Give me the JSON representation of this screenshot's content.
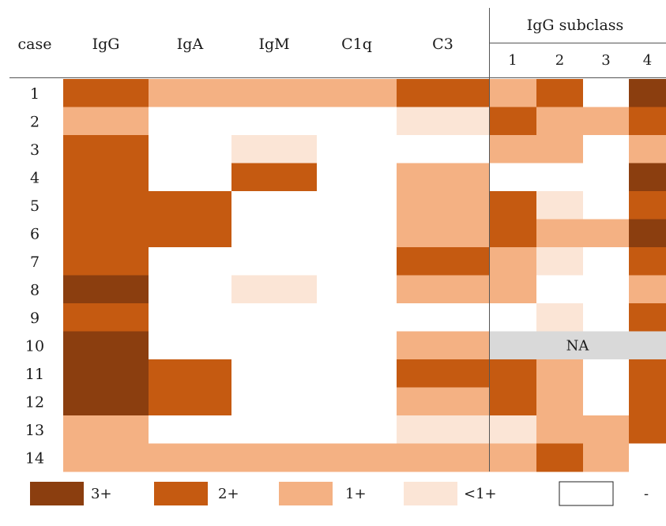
{
  "chart_data": {
    "type": "heatmap",
    "row_header": "case",
    "group_header": "IgG subclass",
    "columns": [
      "IgG",
      "IgA",
      "IgM",
      "C1q",
      "C3",
      "1",
      "2",
      "3",
      "4"
    ],
    "rows": [
      "1",
      "2",
      "3",
      "4",
      "5",
      "6",
      "7",
      "8",
      "9",
      "10",
      "11",
      "12",
      "13",
      "14"
    ],
    "values": [
      [
        "2+",
        "1+",
        "1+",
        "1+",
        "2+",
        "1+",
        "2+",
        "-",
        "3+"
      ],
      [
        "1+",
        "-",
        "-",
        "-",
        "<1+",
        "2+",
        "1+",
        "1+",
        "2+"
      ],
      [
        "2+",
        "-",
        "<1+",
        "-",
        "-",
        "1+",
        "1+",
        "-",
        "1+"
      ],
      [
        "2+",
        "-",
        "2+",
        "-",
        "1+",
        "-",
        "-",
        "-",
        "3+"
      ],
      [
        "2+",
        "2+",
        "-",
        "-",
        "1+",
        "2+",
        "<1+",
        "-",
        "2+"
      ],
      [
        "2+",
        "2+",
        "-",
        "-",
        "1+",
        "2+",
        "1+",
        "1+",
        "3+"
      ],
      [
        "2+",
        "-",
        "-",
        "-",
        "2+",
        "1+",
        "<1+",
        "-",
        "2+"
      ],
      [
        "3+",
        "-",
        "<1+",
        "-",
        "1+",
        "1+",
        "-",
        "-",
        "1+"
      ],
      [
        "2+",
        "-",
        "-",
        "-",
        "-",
        "-",
        "<1+",
        "-",
        "2+"
      ],
      [
        "3+",
        "-",
        "-",
        "-",
        "1+",
        "NA",
        "NA",
        "NA",
        "NA"
      ],
      [
        "3+",
        "2+",
        "-",
        "-",
        "2+",
        "2+",
        "1+",
        "-",
        "2+"
      ],
      [
        "3+",
        "2+",
        "-",
        "-",
        "1+",
        "2+",
        "1+",
        "-",
        "2+"
      ],
      [
        "1+",
        "-",
        "-",
        "-",
        "<1+",
        "<1+",
        "1+",
        "1+",
        "2+"
      ],
      [
        "1+",
        "1+",
        "1+",
        "1+",
        "1+",
        "1+",
        "2+",
        "1+",
        "-"
      ]
    ],
    "na_label": "NA",
    "legend": [
      {
        "level": "3+",
        "label": "3+"
      },
      {
        "level": "2+",
        "label": "2+"
      },
      {
        "level": "1+",
        "label": "1+"
      },
      {
        "level": "<1+",
        "label": "<1+"
      },
      {
        "level": "-",
        "label": "-"
      }
    ],
    "colors": {
      "3+": "#8b3e0f",
      "2+": "#c55a11",
      "1+": "#f4b183",
      "<1+": "#fbe5d6",
      "-": "#ffffff",
      "NA": "#d9d9d9"
    }
  }
}
